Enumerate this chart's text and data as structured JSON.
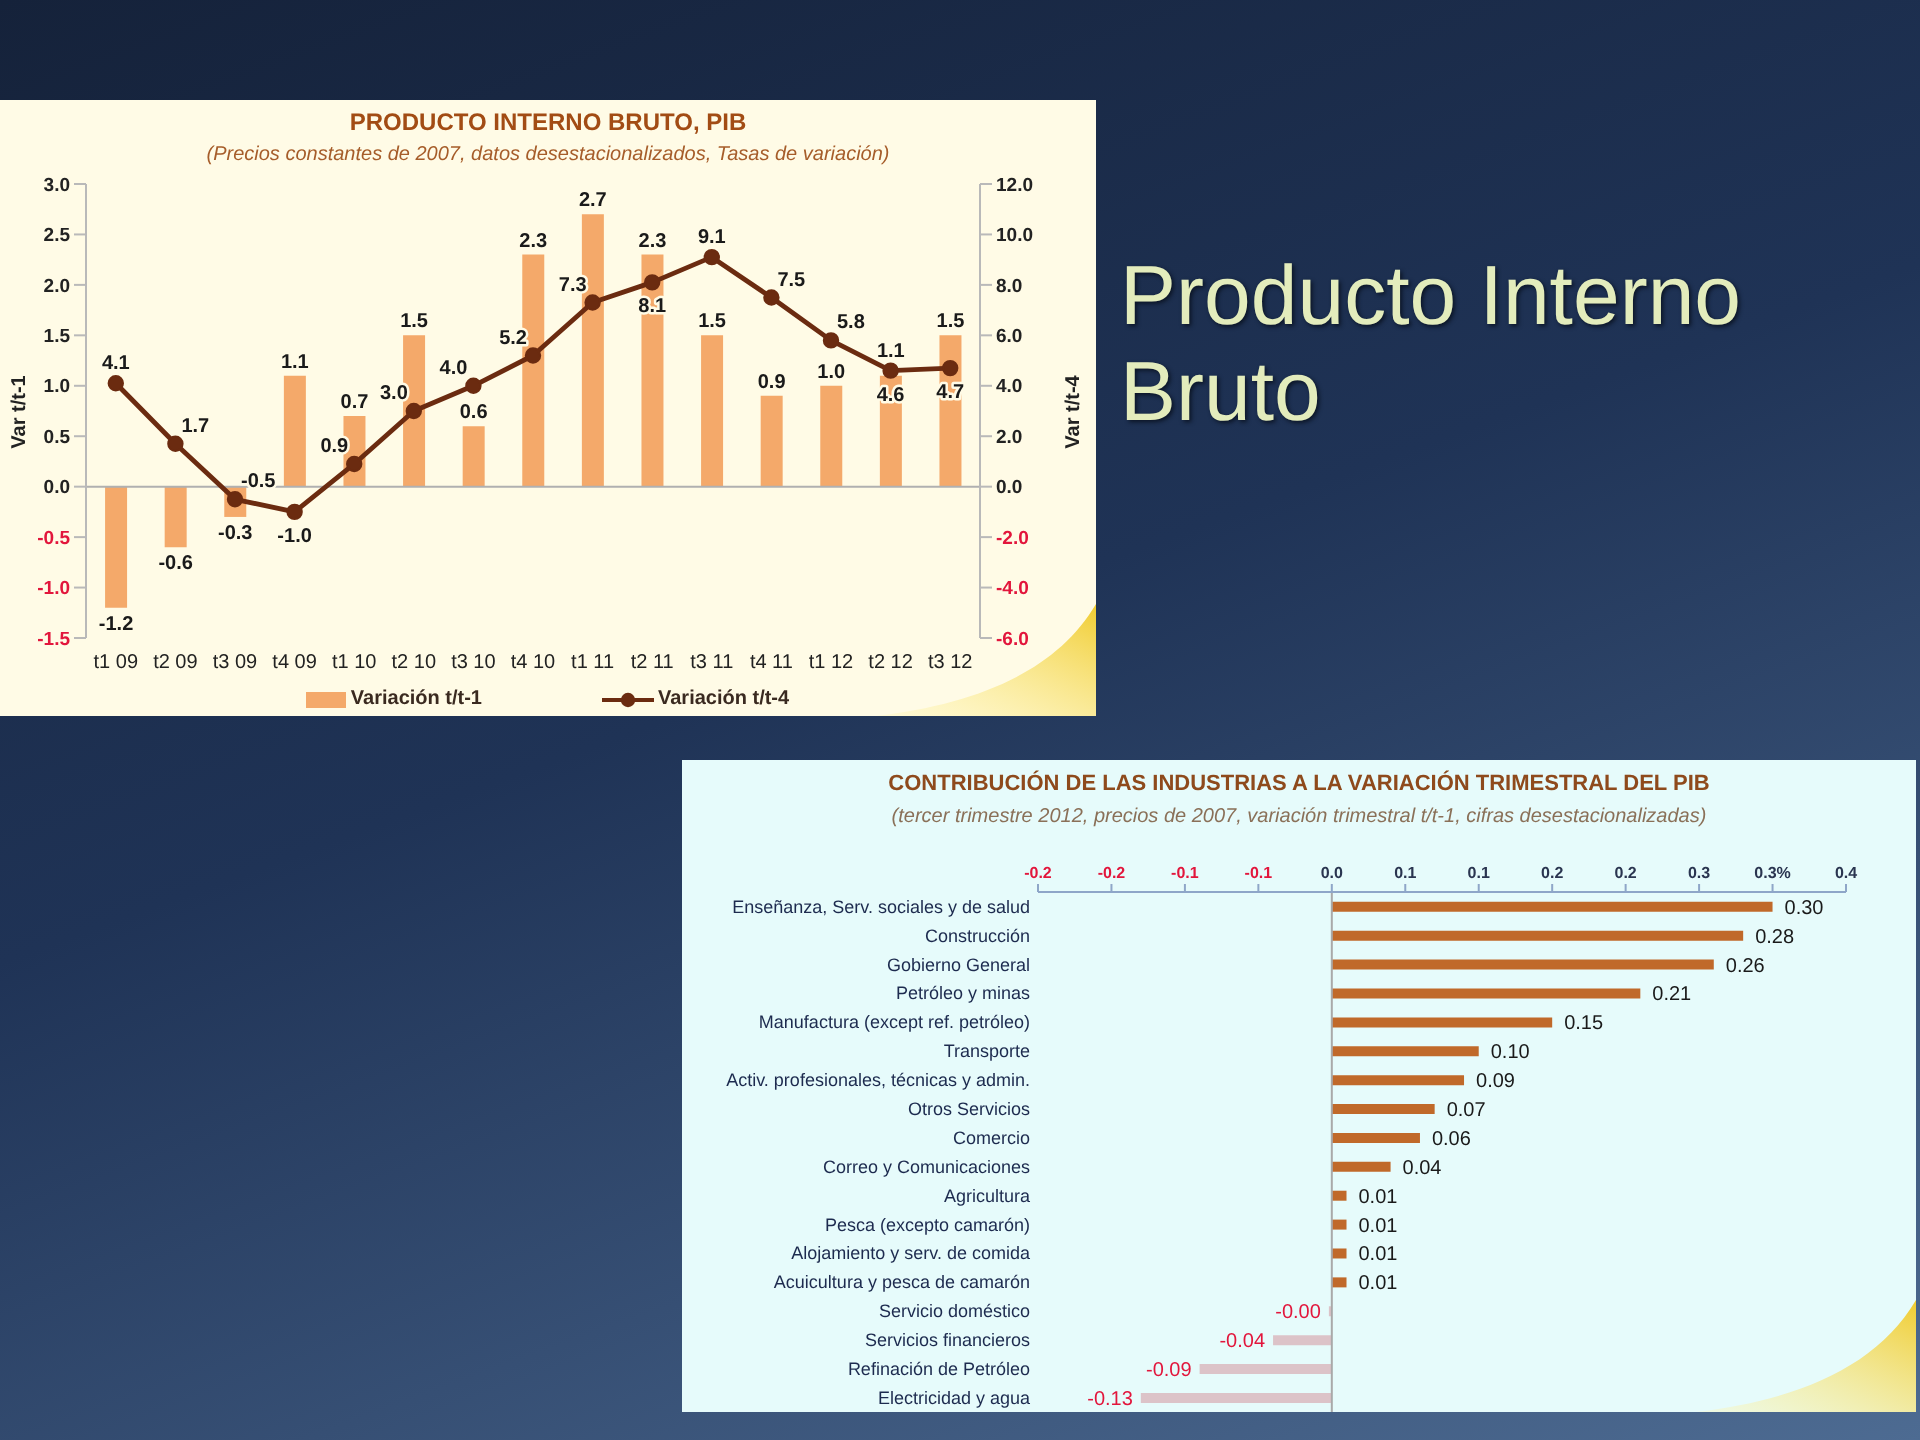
{
  "chart_data": [
    {
      "type": "bar",
      "title": "PRODUCTO INTERNO BRUTO, PIB",
      "subtitle": "(Precios constantes de 2007, datos desestacionalizados, Tasas de variación)",
      "ylabel": "Var t/t-1",
      "y2label": "Var t/t-4",
      "categories": [
        "t1 09",
        "t2 09",
        "t3 09",
        "t4 09",
        "t1 10",
        "t2 10",
        "t3 10",
        "t4 10",
        "t1 11",
        "t2 11",
        "t3 11",
        "t4 11",
        "t1 12",
        "t2 12",
        "t3 12"
      ],
      "series": [
        {
          "name": "Variación t/t-1",
          "type": "bar",
          "color": "#f4a96a",
          "values": [
            -1.2,
            -0.6,
            -0.3,
            1.1,
            0.7,
            1.5,
            0.6,
            2.3,
            2.7,
            2.3,
            1.5,
            0.9,
            1.0,
            1.1,
            1.5
          ],
          "value_labels": [
            "-1.2",
            "-0.6",
            "-0.3",
            "1.1",
            "0.7",
            "1.5",
            "0.6",
            "2.3",
            "2.7",
            "2.3",
            "1.5",
            "0.9",
            "1.0",
            "1.1",
            "1.5"
          ]
        },
        {
          "name": "Variación t/t-4",
          "type": "line",
          "axis": "y2",
          "color": "#6b2b10",
          "values": [
            4.1,
            1.7,
            -0.5,
            -1.0,
            0.9,
            3.0,
            4.0,
            5.2,
            7.3,
            8.1,
            9.1,
            7.5,
            5.8,
            4.6,
            4.7
          ],
          "value_labels": [
            "4.1",
            "1.7",
            "-0.5",
            "-1.0",
            "0.9",
            "3.0",
            "4.0",
            "5.2",
            "7.3",
            "8.1",
            "9.1",
            "7.5",
            "5.8",
            "4.6",
            "4.7"
          ]
        }
      ],
      "ylim": [
        -1.5,
        3
      ],
      "yticks": [
        -1.5,
        {
          "value": -1,
          "label": "-1.0"
        },
        -0.5,
        {
          "value": 0,
          "label": "0.0"
        },
        0.5,
        {
          "value": 1,
          "label": "1.0"
        },
        1.5,
        {
          "value": 2,
          "label": "2.0"
        },
        2.5,
        {
          "value": 3,
          "label": "3.0"
        }
      ],
      "y2lim": [
        -6,
        12
      ],
      "y2ticks": [
        {
          "value": -6,
          "label": "-6.0"
        },
        {
          "value": -4,
          "label": "-4.0"
        },
        {
          "value": -2,
          "label": "-2.0"
        },
        {
          "value": 0,
          "label": "0.0"
        },
        {
          "value": 2,
          "label": "2.0"
        },
        {
          "value": 4,
          "label": "4.0"
        },
        {
          "value": 6,
          "label": "6.0"
        },
        {
          "value": 8,
          "label": "8.0"
        },
        {
          "value": 10,
          "label": "10.0"
        },
        {
          "value": 12,
          "label": "12.0"
        }
      ],
      "legend": "bottom",
      "marker": "circle"
    },
    {
      "type": "other",
      "title": "Producto Interno Bruto"
    },
    {
      "type": "bar",
      "orientation": "horizontal",
      "title": "CONTRIBUCIÓN DE LAS INDUSTRIAS A LA VARIACIÓN TRIMESTRAL DEL PIB",
      "subtitle": "(tercer trimestre 2012, precios de 2007, variación trimestral t/t-1, cifras desestacionalizadas)",
      "categories": [
        "Enseñanza, Serv. sociales y de salud",
        "Construcción",
        "Gobierno General",
        "Petróleo y minas",
        "Manufactura (except ref. petróleo)",
        "Transporte",
        "Activ. profesionales, técnicas y admin.",
        "Otros Servicios",
        "Comercio",
        "Correo y Comunicaciones",
        "Agricultura",
        "Pesca (excepto camarón)",
        "Alojamiento y serv. de comida",
        "Acuicultura y pesca de camarón",
        "Servicio doméstico",
        "Servicios financieros",
        "Refinación de Petróleo",
        "Electricidad y agua"
      ],
      "values": [
        0.3,
        0.28,
        0.26,
        0.21,
        0.15,
        0.1,
        0.09,
        0.07,
        0.06,
        0.04,
        0.01,
        0.01,
        0.01,
        0.01,
        -0.002,
        -0.04,
        -0.09,
        -0.13
      ],
      "colors": [
        "#c0692a",
        "#c0692a",
        "#c0692a",
        "#c0692a",
        "#c0692a",
        "#c0692a",
        "#c0692a",
        "#c0692a",
        "#c0692a",
        "#c0692a",
        "#c0692a",
        "#c0692a",
        "#c0692a",
        "#c0692a",
        "#dcc3c8",
        "#dcc3c8",
        "#dcc3c8",
        "#dcc3c8"
      ],
      "value_labels": [
        "0.30",
        "0.28",
        "0.26",
        "0.21",
        "0.15",
        "0.10",
        "0.09",
        "0.07",
        "0.06",
        "0.04",
        "0.01",
        "0.01",
        "0.01",
        "0.01",
        "-0.00",
        "-0.04",
        "-0.09",
        "-0.13"
      ],
      "xlim": [
        -0.2,
        0.35
      ],
      "xticks": [
        -0.2,
        {
          "value": -0.15,
          "label": "-0.2"
        },
        -0.1,
        {
          "value": -0.05,
          "label": "-0.1"
        },
        {
          "value": 0,
          "label": "0.0"
        },
        {
          "value": 0.05,
          "label": "0.1"
        },
        0.1,
        {
          "value": 0.15,
          "label": "0.2"
        },
        0.2,
        {
          "value": 0.25,
          "label": "0.3"
        },
        {
          "value": 0.3,
          "label": "0.3%"
        },
        {
          "value": 0.35,
          "label": "0.4"
        }
      ]
    }
  ]
}
